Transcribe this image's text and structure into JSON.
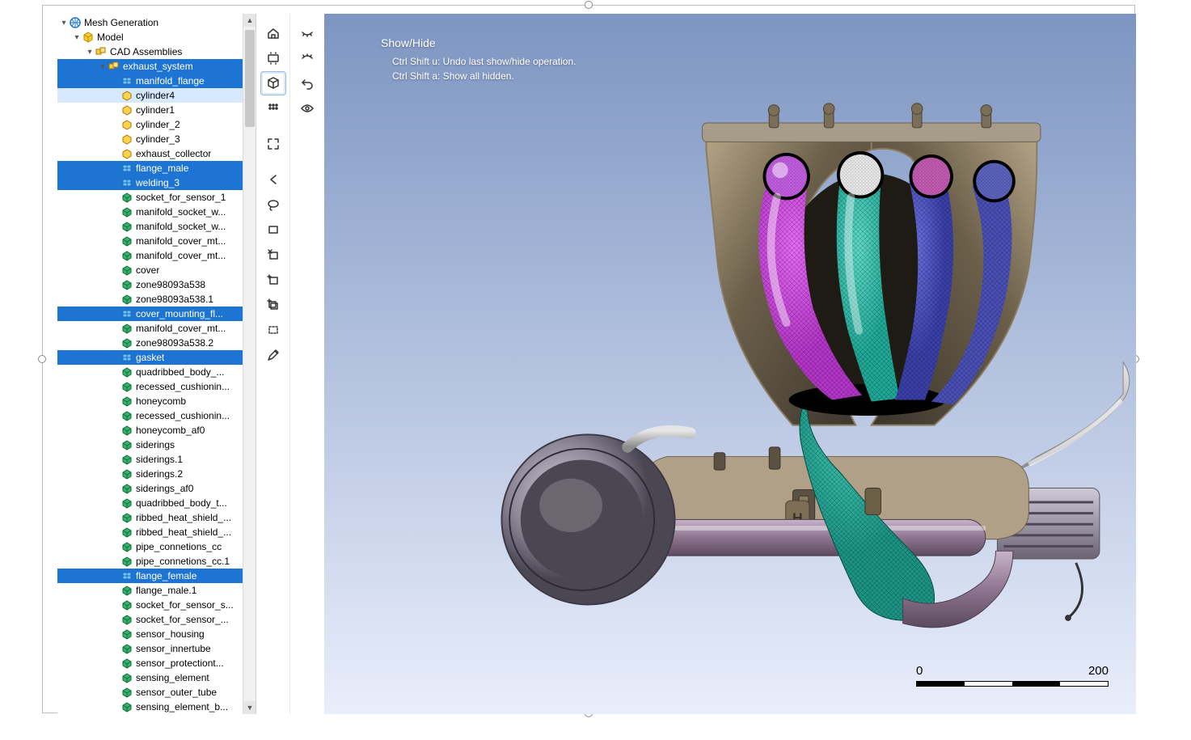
{
  "tree": {
    "root_label": "Mesh Generation",
    "model_label": "Model",
    "assemblies_label": "CAD Assemblies",
    "nodes": [
      {
        "label": "exhaust_system",
        "icon": "asm",
        "depth": 4,
        "twisty": "▾",
        "sel": true
      },
      {
        "label": "manifold_flange",
        "icon": "surf",
        "depth": 5,
        "sel": true
      },
      {
        "label": "cylinder4",
        "icon": "part",
        "depth": 5,
        "hl": true
      },
      {
        "label": "cylinder1",
        "icon": "part",
        "depth": 5
      },
      {
        "label": "cylinder_2",
        "icon": "part",
        "depth": 5
      },
      {
        "label": "cylinder_3",
        "icon": "part",
        "depth": 5
      },
      {
        "label": "exhaust_collector",
        "icon": "part",
        "depth": 5
      },
      {
        "label": "flange_male",
        "icon": "surf",
        "depth": 5,
        "sel": true
      },
      {
        "label": "welding_3",
        "icon": "surf",
        "depth": 5,
        "sel": true
      },
      {
        "label": "socket_for_sensor_1",
        "icon": "body",
        "depth": 5
      },
      {
        "label": "manifold_socket_w...",
        "icon": "body",
        "depth": 5
      },
      {
        "label": "manifold_socket_w...",
        "icon": "body",
        "depth": 5
      },
      {
        "label": "manifold_cover_mt...",
        "icon": "body",
        "depth": 5
      },
      {
        "label": "manifold_cover_mt...",
        "icon": "body",
        "depth": 5
      },
      {
        "label": "cover",
        "icon": "body",
        "depth": 5
      },
      {
        "label": "zone98093a538",
        "icon": "body",
        "depth": 5
      },
      {
        "label": "zone98093a538.1",
        "icon": "body",
        "depth": 5
      },
      {
        "label": "cover_mounting_fl...",
        "icon": "surf",
        "depth": 5,
        "sel": true
      },
      {
        "label": "manifold_cover_mt...",
        "icon": "body",
        "depth": 5
      },
      {
        "label": "zone98093a538.2",
        "icon": "body",
        "depth": 5
      },
      {
        "label": "gasket",
        "icon": "surf",
        "depth": 5,
        "sel": true
      },
      {
        "label": "quadribbed_body_...",
        "icon": "body",
        "depth": 5
      },
      {
        "label": "recessed_cushionin...",
        "icon": "body",
        "depth": 5
      },
      {
        "label": "honeycomb",
        "icon": "body",
        "depth": 5
      },
      {
        "label": "recessed_cushionin...",
        "icon": "body",
        "depth": 5
      },
      {
        "label": "honeycomb_af0",
        "icon": "body",
        "depth": 5
      },
      {
        "label": "siderings",
        "icon": "body",
        "depth": 5
      },
      {
        "label": "siderings.1",
        "icon": "body",
        "depth": 5
      },
      {
        "label": "siderings.2",
        "icon": "body",
        "depth": 5
      },
      {
        "label": "siderings_af0",
        "icon": "body",
        "depth": 5
      },
      {
        "label": "quadribbed_body_t...",
        "icon": "body",
        "depth": 5
      },
      {
        "label": "ribbed_heat_shield_...",
        "icon": "body",
        "depth": 5
      },
      {
        "label": "ribbed_heat_shield_...",
        "icon": "body",
        "depth": 5
      },
      {
        "label": "pipe_connetions_cc",
        "icon": "body",
        "depth": 5
      },
      {
        "label": "pipe_connetions_cc.1",
        "icon": "body",
        "depth": 5
      },
      {
        "label": "flange_female",
        "icon": "surf",
        "depth": 5,
        "sel": true
      },
      {
        "label": "flange_male.1",
        "icon": "body",
        "depth": 5
      },
      {
        "label": "socket_for_sensor_s...",
        "icon": "body",
        "depth": 5
      },
      {
        "label": "socket_for_sensor_...",
        "icon": "body",
        "depth": 5
      },
      {
        "label": "sensor_housing",
        "icon": "body",
        "depth": 5
      },
      {
        "label": "sensor_innertube",
        "icon": "body",
        "depth": 5
      },
      {
        "label": "sensor_protectiont...",
        "icon": "body",
        "depth": 5
      },
      {
        "label": "sensing_element",
        "icon": "body",
        "depth": 5
      },
      {
        "label": "sensor_outer_tube",
        "icon": "body",
        "depth": 5
      },
      {
        "label": "sensing_element_b...",
        "icon": "body",
        "depth": 5
      }
    ]
  },
  "toolbar_col1": [
    {
      "name": "home-icon",
      "glyph": "home"
    },
    {
      "name": "fit-view-icon",
      "glyph": "fit"
    },
    {
      "name": "cube-view-icon",
      "glyph": "cube",
      "active": true
    },
    {
      "name": "grid-dots-icon",
      "glyph": "dots"
    },
    {
      "name": "sep"
    },
    {
      "name": "expand-corners-icon",
      "glyph": "expand"
    },
    {
      "name": "sep"
    },
    {
      "name": "back-icon",
      "glyph": "back"
    },
    {
      "name": "lasso-icon",
      "glyph": "lasso"
    },
    {
      "name": "rect-select-icon",
      "glyph": "rect"
    },
    {
      "name": "remove-selection-icon",
      "glyph": "xrect"
    },
    {
      "name": "add-selection-icon",
      "glyph": "plusrect"
    },
    {
      "name": "add-multi-icon",
      "glyph": "plusmulti"
    },
    {
      "name": "select-hollow-icon",
      "glyph": "hollowrect"
    },
    {
      "name": "edit-pencil-icon",
      "glyph": "pencil"
    }
  ],
  "toolbar_col2": [
    {
      "name": "eyelash-closed-icon",
      "glyph": "eyelash"
    },
    {
      "name": "eyelash-open-icon",
      "glyph": "eyelash2"
    },
    {
      "name": "undo-icon",
      "glyph": "undo"
    },
    {
      "name": "eye-icon",
      "glyph": "eye"
    },
    {
      "name": "sep"
    }
  ],
  "hud": {
    "title": "Show/Hide",
    "line1": "Ctrl Shift u: Undo last show/hide operation.",
    "line2": "Ctrl Shift a: Show all hidden."
  },
  "scale": {
    "min": "0",
    "max": "200"
  },
  "viewport": {
    "bg_top": "#7d95c2",
    "bg_bottom": "#e9eefb",
    "mesh_colors": {
      "pipe1": "#b435c8",
      "pipe1_hi": "#e66af5",
      "pipe2": "#1fa896",
      "pipe2_hi": "#5fd9c8",
      "pipe3": "#3a3fa8",
      "pipe3_hi": "#6a70e0",
      "pipe4": "#4a4fb5",
      "circle1": "#c760e6",
      "circle2": "#f0f0f0",
      "circle3": "#c95db8",
      "circle4": "#5e66c4",
      "collector": "#1c9485",
      "collector_hi": "#3fc7b4"
    },
    "metal_colors": {
      "shell_dark": "#3a342b",
      "shell_mid": "#6b5f4a",
      "shell_light": "#b5a587",
      "shell_edge": "#8c7c5e",
      "barrel_dark": "#4a4652",
      "barrel_mid": "#8c8696",
      "barrel_hi": "#d0cad8",
      "pipe_dark": "#5c4a5e",
      "pipe_mid": "#8e7590",
      "pipe_hi": "#c7b3c9",
      "flange": "#a79b8a",
      "bolt": "#7a6e58",
      "bracket": "#b0a088",
      "hose": "#b8b8b8",
      "fin_dark": "#6c6474",
      "fin_light": "#cfc9d8"
    }
  },
  "colors": {
    "selection_bg": "#1e74d2",
    "highlight_bg": "#d6e9ff"
  }
}
